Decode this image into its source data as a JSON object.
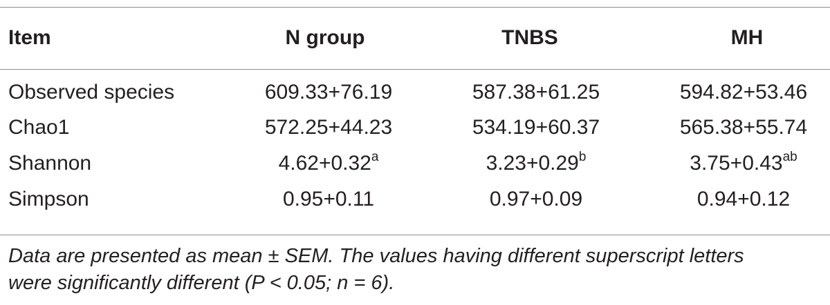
{
  "table": {
    "headers": {
      "item": "Item",
      "n_group": "N group",
      "tnbs": "TNBS",
      "mh": "MH"
    },
    "rows": [
      {
        "item": "Observed species",
        "n_group": "609.33+76.19",
        "n_group_sup": "",
        "tnbs": "587.38+61.25",
        "tnbs_sup": "",
        "mh": "594.82+53.46",
        "mh_sup": ""
      },
      {
        "item": "Chao1",
        "n_group": "572.25+44.23",
        "n_group_sup": "",
        "tnbs": "534.19+60.37",
        "tnbs_sup": "",
        "mh": "565.38+55.74",
        "mh_sup": ""
      },
      {
        "item": "Shannon",
        "n_group": "4.62+0.32",
        "n_group_sup": "a",
        "tnbs": "3.23+0.29",
        "tnbs_sup": "b",
        "mh": "3.75+0.43",
        "mh_sup": "ab"
      },
      {
        "item": "Simpson",
        "n_group": "0.95+0.11",
        "n_group_sup": "",
        "tnbs": "0.97+0.09",
        "tnbs_sup": "",
        "mh": "0.94+0.12",
        "mh_sup": ""
      }
    ]
  },
  "footnote": {
    "line1": "Data are presented as mean ± SEM. The values having different superscript letters",
    "line2": "were significantly different (P < 0.05; n = 6)."
  }
}
